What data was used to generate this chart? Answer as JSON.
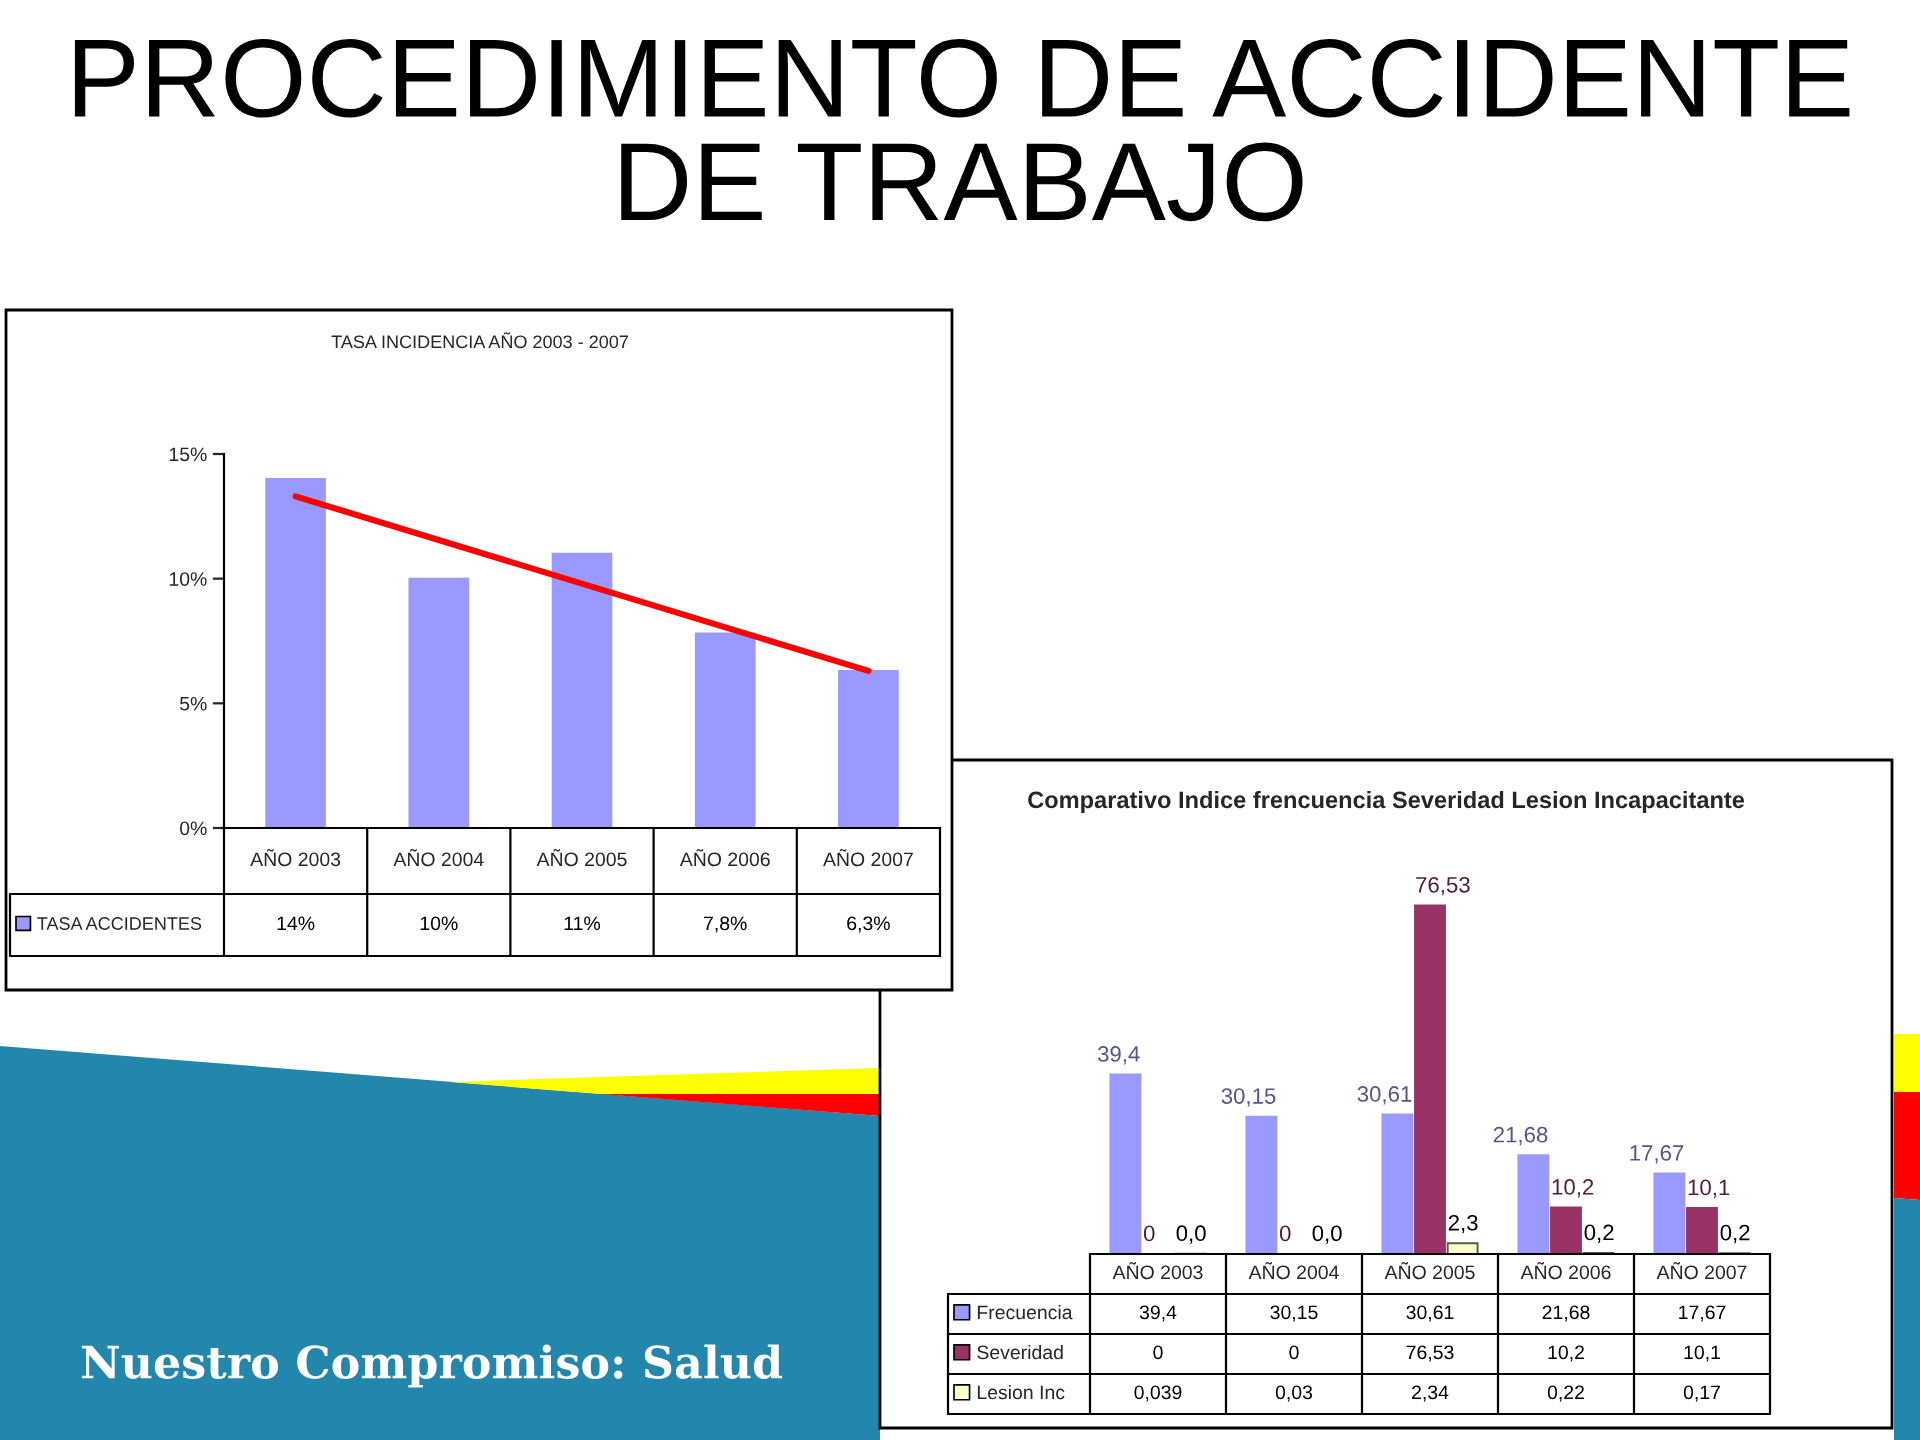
{
  "chart_data": [
    {
      "type": "bar",
      "title": "PROCEDIMIENTO DE ACCIDENTE DE TRABAJO",
      "subtitle": "TASA INCIDENCIA AÑO 2003 - 2007",
      "categories": [
        "AÑO 2003",
        "AÑO 2004",
        "AÑO 2005",
        "AÑO 2006",
        "AÑO 2007"
      ],
      "series": [
        {
          "name": "TASA ACCIDENTES",
          "color": "#9999ff",
          "values": [
            14,
            10,
            11,
            7.8,
            6.3
          ],
          "value_labels": [
            "14%",
            "10%",
            "11%",
            "7,8%",
            "6,3%"
          ]
        },
        {
          "type": "line",
          "x": [
            "AÑO 2003",
            "AÑO 2007"
          ],
          "values": [
            13.3,
            6.3
          ],
          "color": "#ff0000"
        }
      ],
      "ylim": [
        0,
        15
      ],
      "yticks": [
        {
          "value": 0,
          "label": "0%"
        },
        {
          "value": 5,
          "label": "5%"
        },
        {
          "value": 10,
          "label": "10%"
        },
        {
          "value": 15,
          "label": "15%"
        }
      ],
      "legend": "bottom left",
      "annotations": [
        "Nuestro Compromiso: Salud"
      ]
    },
    {
      "type": "bar",
      "title": "Comparativo Indice frencuencia Severidad Lesion Incapacitante",
      "categories": [
        "AÑO 2003",
        "AÑO 2004",
        "AÑO 2005",
        "AÑO 2006",
        "AÑO 2007"
      ],
      "series": [
        {
          "name": "Frecuencia",
          "color": "#9999ff",
          "values": [
            39.4,
            30.15,
            30.61,
            21.68,
            17.67
          ],
          "value_labels": [
            "39,4",
            "30,15",
            "30,61",
            "21,68",
            "17,67"
          ]
        },
        {
          "name": "Severidad",
          "color": "#993366",
          "values": [
            0,
            0,
            76.53,
            10.2,
            10.1
          ],
          "value_labels": [
            "0",
            "0",
            "76,53",
            "10,2",
            "10,1"
          ]
        },
        {
          "name": "Lesion Inc",
          "color": "#ffffcc",
          "values": [
            0.039,
            0.03,
            2.34,
            0.22,
            0.17
          ],
          "value_labels": [
            "0,039",
            "0,03",
            "2,34",
            "0,22",
            "0,17"
          ]
        }
      ],
      "tick_labels": "x",
      "legend": "bottom left",
      "data_labels": true,
      "annotations": [
        {
          "text": "0,0",
          "x": "AÑO 2003",
          "y": 0.039
        },
        {
          "text": "0,0",
          "x": "AÑO 2004",
          "y": 0.03
        },
        {
          "text": "2,3",
          "x": "AÑO 2005",
          "y": 2.34
        },
        {
          "text": "0,2",
          "x": "AÑO 2006",
          "y": 0.22
        },
        {
          "text": "0,2",
          "x": "AÑO 2007",
          "y": 0.17
        }
      ]
    }
  ]
}
